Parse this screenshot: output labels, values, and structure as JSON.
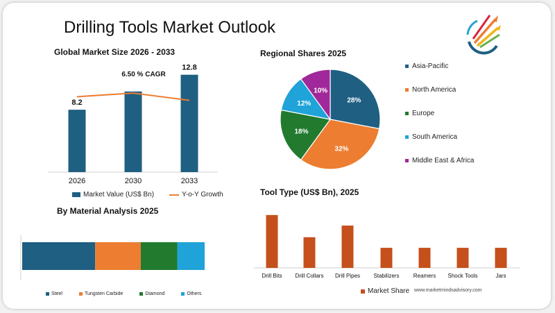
{
  "page": {
    "title": "Drilling Tools Market Outlook",
    "website": "www.marketmindsadvisory.com"
  },
  "colors": {
    "navy": "#1f5f82",
    "orange": "#ed7d31",
    "green": "#217a2e",
    "lightblue": "#1fa3d8",
    "purple": "#a0289a",
    "rust": "#c5501c"
  },
  "icons": [
    "company-logo-icon"
  ],
  "chart_data": [
    {
      "id": "global",
      "type": "bar",
      "title": "Global Market Size 2026 - 2033",
      "categories": [
        "2026",
        "2030",
        "2033"
      ],
      "series": [
        {
          "name": "Market Value (US$ Bn)",
          "values": [
            8.2,
            10.6,
            12.8
          ],
          "data_labels": [
            "8.2",
            "",
            "12.8"
          ]
        },
        {
          "name": "Y-o-Y Growth",
          "type": "line",
          "values": [
            6.2,
            6.5,
            5.9
          ]
        }
      ],
      "annotation": "6.50 % CAGR",
      "ylim": [
        0,
        13.5
      ],
      "legend": "bottom"
    },
    {
      "id": "regional",
      "type": "pie",
      "title": "Regional Shares 2025",
      "labels": [
        "Asia-Pacific",
        "North America",
        "Europe",
        "South America",
        "Middle East & Africa"
      ],
      "values": [
        28,
        32,
        18,
        12,
        10
      ],
      "value_labels": [
        "28%",
        "32%",
        "18%",
        "12%",
        "10%"
      ],
      "legend": "right"
    },
    {
      "id": "material",
      "type": "bar",
      "orientation": "horizontal",
      "stacked": true,
      "title": "By  Material Analysis 2025",
      "categories": [
        ""
      ],
      "series": [
        {
          "name": "Steel",
          "values": [
            40
          ]
        },
        {
          "name": "Tungsten Carbide",
          "values": [
            25
          ]
        },
        {
          "name": "Diamond",
          "values": [
            20
          ]
        },
        {
          "name": "Others",
          "values": [
            15
          ]
        }
      ],
      "legend": "bottom"
    },
    {
      "id": "tooltype",
      "type": "bar",
      "title": "Tool Type (US$ Bn), 2025",
      "categories": [
        "Drill Bits",
        "Drill Collars",
        "Drill Pipes",
        "Stabilizers",
        "Reamers",
        "Shock Tools",
        "Jars"
      ],
      "series": [
        {
          "name": "Market Share",
          "values": [
            10,
            5.8,
            8,
            3.8,
            3.8,
            3.8,
            3.8
          ]
        }
      ],
      "ylim": [
        0,
        10.5
      ],
      "legend": "bottom"
    }
  ]
}
